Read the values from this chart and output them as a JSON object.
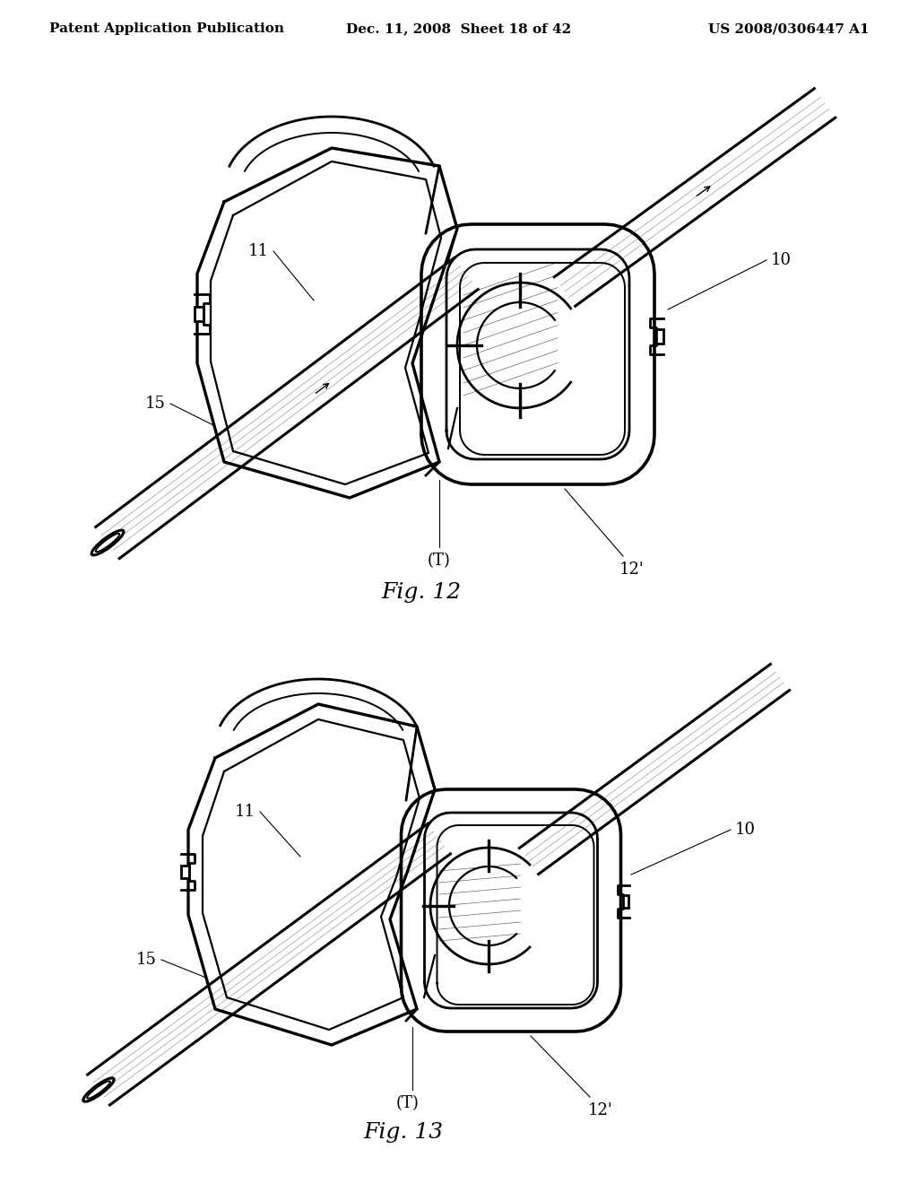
{
  "background_color": "#ffffff",
  "header_left": "Patent Application Publication",
  "header_mid": "Dec. 11, 2008  Sheet 18 of 42",
  "header_right": "US 2008/0306447 A1",
  "fig12_label": "Fig. 12",
  "fig13_label": "Fig. 13",
  "text_color": "#000000",
  "line_color": "#000000",
  "header_fontsize": 11,
  "fig_label_fontsize": 18,
  "annotation_fontsize": 13
}
